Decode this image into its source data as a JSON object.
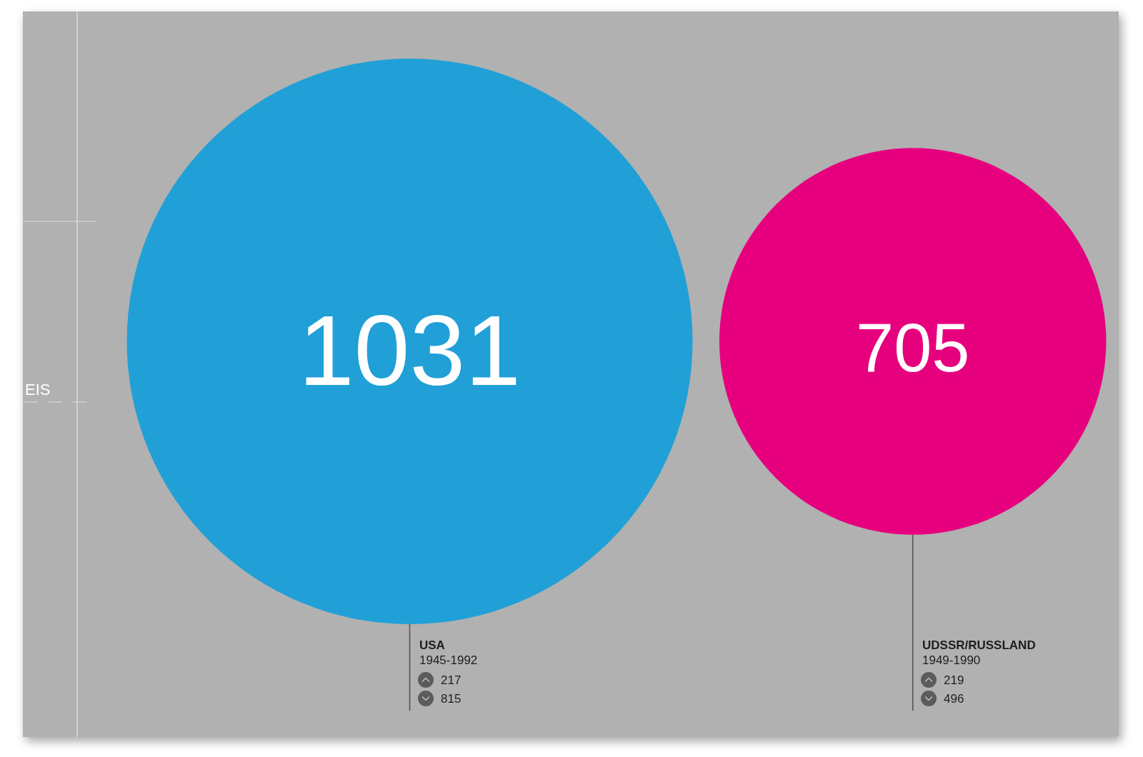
{
  "chart_data": {
    "type": "other",
    "data_labels": true,
    "categories": [
      "USA",
      "UDSSR/RUSSLAND"
    ],
    "values": [
      1031,
      705
    ],
    "colors": [
      "#219fd7",
      "#e6007e"
    ],
    "annotations": [
      "EIS",
      {
        "text": "1945-1992",
        "x": "USA"
      },
      {
        "text": "217",
        "x": "USA"
      },
      {
        "text": "815",
        "x": "USA"
      },
      {
        "text": "1949-1990",
        "x": "UDSSR/RUSSLAND"
      },
      {
        "text": "219",
        "x": "UDSSR/RUSSLAND"
      },
      {
        "text": "496",
        "x": "UDSSR/RUSSLAND"
      }
    ]
  }
}
